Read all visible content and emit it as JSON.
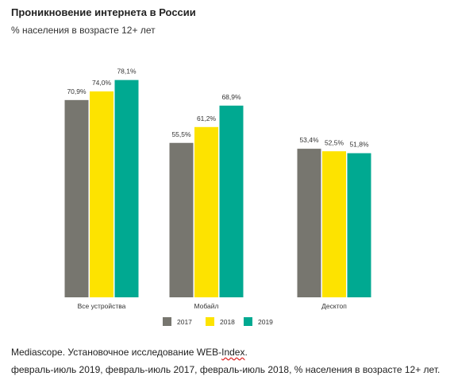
{
  "chart_data": {
    "type": "bar",
    "title": "Проникновение интернета в России",
    "subtitle": "% населения в возрасте 12+ лет",
    "categories": [
      "Все устройства",
      "Мобайл",
      "Десктоп"
    ],
    "series": [
      {
        "name": "2017",
        "color": "#77766f",
        "values": [
          70.9,
          55.5,
          53.4
        ],
        "labels": [
          "70,9%",
          "55,5%",
          "53,4%"
        ]
      },
      {
        "name": "2018",
        "color": "#fde300",
        "values": [
          74.0,
          61.2,
          52.5
        ],
        "labels": [
          "74,0%",
          "61,2%",
          "52,5%"
        ]
      },
      {
        "name": "2019",
        "color": "#00a991",
        "values": [
          78.1,
          68.9,
          51.8
        ],
        "labels": [
          "78,1%",
          "68,9%",
          "51,8%"
        ]
      }
    ],
    "ylim": [
      0,
      100
    ],
    "grid": false,
    "legend": "bottom"
  },
  "footer": {
    "source_prefix": "Mediascope. Установочное исследование WEB-",
    "source_index": "Index",
    "source_suffix": ".",
    "period": "февраль-июль 2019, февраль-июль 2017, февраль-июль 2018, % населения в возрасте 12+ лет."
  }
}
